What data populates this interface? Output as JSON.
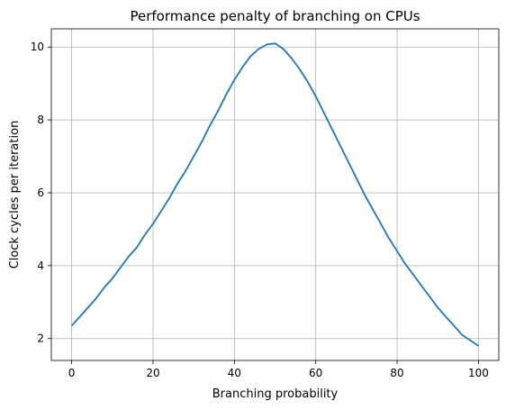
{
  "chart_data": {
    "type": "line",
    "title": "Performance penalty of branching on CPUs",
    "xlabel": "Branching probability",
    "ylabel": "Clock cycles per iteration",
    "xlim": [
      -5,
      105
    ],
    "ylim": [
      1.4,
      10.5
    ],
    "xticks": [
      0,
      20,
      40,
      60,
      80,
      100
    ],
    "yticks": [
      2,
      4,
      6,
      8,
      10
    ],
    "grid": true,
    "legend": "none",
    "series": [
      {
        "color": "#1f77b4",
        "x": [
          0,
          2,
          4,
          6,
          8,
          10,
          12,
          14,
          16,
          18,
          20,
          22,
          24,
          26,
          28,
          30,
          32,
          34,
          36,
          38,
          40,
          42,
          44,
          46,
          48,
          50,
          52,
          54,
          56,
          58,
          60,
          62,
          64,
          66,
          68,
          70,
          72,
          74,
          76,
          78,
          80,
          82,
          84,
          86,
          88,
          90,
          92,
          94,
          96,
          98,
          100
        ],
        "y": [
          2.35,
          2.6,
          2.85,
          3.1,
          3.4,
          3.65,
          3.95,
          4.25,
          4.5,
          4.85,
          5.15,
          5.5,
          5.85,
          6.25,
          6.6,
          7.0,
          7.4,
          7.85,
          8.25,
          8.7,
          9.1,
          9.45,
          9.75,
          9.95,
          10.07,
          10.1,
          9.95,
          9.7,
          9.4,
          9.05,
          8.65,
          8.2,
          7.75,
          7.3,
          6.85,
          6.4,
          5.95,
          5.55,
          5.15,
          4.75,
          4.4,
          4.05,
          3.75,
          3.45,
          3.15,
          2.85,
          2.6,
          2.35,
          2.1,
          1.95,
          1.8
        ]
      }
    ]
  }
}
